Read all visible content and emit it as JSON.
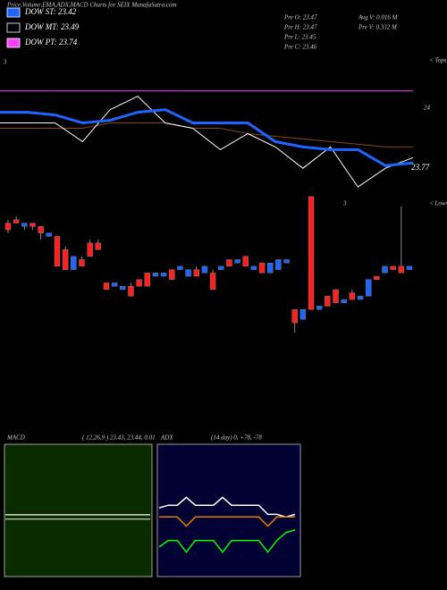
{
  "header": {
    "title": "Price,Volume,EMA,ADX,MACD Charts for SEIX  MunafaSutra.com"
  },
  "legend": [
    {
      "label": "DOW ST: 23.42",
      "color": "#1e64ff"
    },
    {
      "label": "DOW MT: 23.49",
      "color": "#000000"
    },
    {
      "label": "DOW PT: 23.74",
      "color": "#ff40ff"
    }
  ],
  "stats": [
    "Pre  O: 23.47",
    "Pre  H: 23.47",
    "Pre  L: 23.45",
    "Pre  C: 23.46",
    "Avg V: 0.016  M",
    "Pre  V: 0.332  M"
  ],
  "markers": {
    "tops": "< Tops",
    "lows": "< Lows",
    "left_tick": "3",
    "mid_tick": "3"
  },
  "overlay": {
    "type": "line",
    "ylim": [
      23.63,
      24.2
    ],
    "labels": {
      "top": "24",
      "bottom": "23.77"
    },
    "series": [
      {
        "color": "#ff40ff",
        "values": [
          24.06,
          24.06,
          24.06,
          24.06,
          24.06,
          24.06,
          24.06,
          24.06,
          24.06,
          24.06,
          24.06,
          24.06,
          24.06,
          24.06,
          24.06,
          24.06
        ]
      },
      {
        "color": "#8b4513",
        "values": [
          23.92,
          23.92,
          23.92,
          23.92,
          23.94,
          23.94,
          23.94,
          23.92,
          23.92,
          23.9,
          23.89,
          23.88,
          23.87,
          23.86,
          23.85,
          23.85
        ]
      },
      {
        "color": "#ffffff",
        "values": [
          23.94,
          23.94,
          23.94,
          23.87,
          23.99,
          24.04,
          23.94,
          23.92,
          23.84,
          23.9,
          23.85,
          23.77,
          23.85,
          23.7,
          23.77,
          23.81
        ]
      },
      {
        "color": "#1e64ff",
        "values": [
          23.98,
          23.98,
          23.97,
          23.94,
          23.95,
          23.98,
          23.99,
          23.94,
          23.94,
          23.94,
          23.87,
          23.85,
          23.84,
          23.84,
          23.78,
          23.79
        ]
      }
    ]
  },
  "candles": {
    "type": "candlestick",
    "ylim": [
      22.99,
      24.12
    ],
    "up_color": "#1e64ff",
    "down_color": "#ff2020",
    "ohlc": [
      [
        23.61,
        23.62,
        23.58,
        23.59
      ],
      [
        23.62,
        23.63,
        23.61,
        23.61
      ],
      [
        23.6,
        23.61,
        23.59,
        23.61
      ],
      [
        23.61,
        23.61,
        23.59,
        23.6
      ],
      [
        23.6,
        23.6,
        23.56,
        23.58
      ],
      [
        23.57,
        23.58,
        23.57,
        23.58
      ],
      [
        23.57,
        23.57,
        23.48,
        23.48
      ],
      [
        23.53,
        23.54,
        23.47,
        23.47
      ],
      [
        23.47,
        23.51,
        23.47,
        23.51
      ],
      [
        23.5,
        23.51,
        23.48,
        23.48
      ],
      [
        23.55,
        23.56,
        23.51,
        23.51
      ],
      [
        23.55,
        23.56,
        23.53,
        23.53
      ],
      [
        23.43,
        23.43,
        23.41,
        23.41
      ],
      [
        23.42,
        23.43,
        23.42,
        23.43
      ],
      [
        23.41,
        23.42,
        23.41,
        23.42
      ],
      [
        23.42,
        23.43,
        23.39,
        23.39
      ],
      [
        23.44,
        23.44,
        23.42,
        23.42
      ],
      [
        23.46,
        23.46,
        23.42,
        23.42
      ],
      [
        23.45,
        23.46,
        23.45,
        23.46
      ],
      [
        23.45,
        23.46,
        23.45,
        23.46
      ],
      [
        23.47,
        23.47,
        23.44,
        23.44
      ],
      [
        23.47,
        23.48,
        23.47,
        23.48
      ],
      [
        23.45,
        23.47,
        23.45,
        23.47
      ],
      [
        23.47,
        23.48,
        23.45,
        23.45
      ],
      [
        23.46,
        23.48,
        23.46,
        23.48
      ],
      [
        23.46,
        23.47,
        23.41,
        23.41
      ],
      [
        23.47,
        23.48,
        23.47,
        23.48
      ],
      [
        23.5,
        23.5,
        23.48,
        23.48
      ],
      [
        23.49,
        23.5,
        23.49,
        23.5
      ],
      [
        23.51,
        23.51,
        23.48,
        23.48
      ],
      [
        23.47,
        23.48,
        23.47,
        23.48
      ],
      [
        23.49,
        23.49,
        23.46,
        23.46
      ],
      [
        23.46,
        23.49,
        23.46,
        23.49
      ],
      [
        23.47,
        23.5,
        23.47,
        23.5
      ],
      [
        23.49,
        23.5,
        23.49,
        23.5
      ],
      [
        23.35,
        23.35,
        23.28,
        23.31
      ],
      [
        23.32,
        23.35,
        23.32,
        23.35
      ],
      [
        23.69,
        23.69,
        23.35,
        23.35
      ],
      [
        23.35,
        23.36,
        23.35,
        23.36
      ],
      [
        23.39,
        23.39,
        23.36,
        23.36
      ],
      [
        23.41,
        23.41,
        23.37,
        23.37
      ],
      [
        23.37,
        23.38,
        23.37,
        23.38
      ],
      [
        23.4,
        23.41,
        23.38,
        23.38
      ],
      [
        23.38,
        23.39,
        23.38,
        23.39
      ],
      [
        23.39,
        23.44,
        23.39,
        23.44
      ],
      [
        23.45,
        23.45,
        23.44,
        23.44
      ],
      [
        23.46,
        23.48,
        23.46,
        23.48
      ],
      [
        23.48,
        23.48,
        23.47,
        23.47
      ],
      [
        23.48,
        23.66,
        23.46,
        23.46
      ],
      [
        23.47,
        23.48,
        23.47,
        23.48
      ]
    ]
  },
  "macd_panel": {
    "type": "line",
    "title": "MACD",
    "params": "( 12,26,9 ) 23.43, 23.44, 0.01",
    "ylim": [
      23.3,
      23.6
    ],
    "series": [
      {
        "color": "#ffffff",
        "values": [
          23.44,
          23.44,
          23.44,
          23.44,
          23.44,
          23.44,
          23.44,
          23.44,
          23.44,
          23.44,
          23.44,
          23.44,
          23.44,
          23.44,
          23.44,
          23.44
        ]
      },
      {
        "color": "#dddddd",
        "values": [
          23.43,
          23.43,
          23.43,
          23.43,
          23.43,
          23.43,
          23.43,
          23.43,
          23.43,
          23.43,
          23.43,
          23.43,
          23.43,
          23.43,
          23.43,
          23.43
        ]
      }
    ]
  },
  "adx_panel": {
    "type": "line",
    "title": "ADX",
    "params": "(14 day) 0, +78, -78",
    "ylim": [
      0,
      100
    ],
    "series": [
      {
        "color": "#ffffff",
        "values": [
          52,
          54,
          54,
          60,
          54,
          54,
          54,
          60,
          54,
          54,
          54,
          54,
          47,
          47,
          45,
          47
        ]
      },
      {
        "color": "#e07b00",
        "values": [
          45,
          45,
          45,
          38,
          45,
          45,
          45,
          45,
          45,
          45,
          45,
          45,
          38,
          45,
          45,
          45
        ]
      },
      {
        "color": "#00ff00",
        "values": [
          22,
          27,
          27,
          18,
          27,
          27,
          27,
          18,
          27,
          27,
          27,
          27,
          18,
          27,
          33,
          35
        ]
      }
    ]
  }
}
